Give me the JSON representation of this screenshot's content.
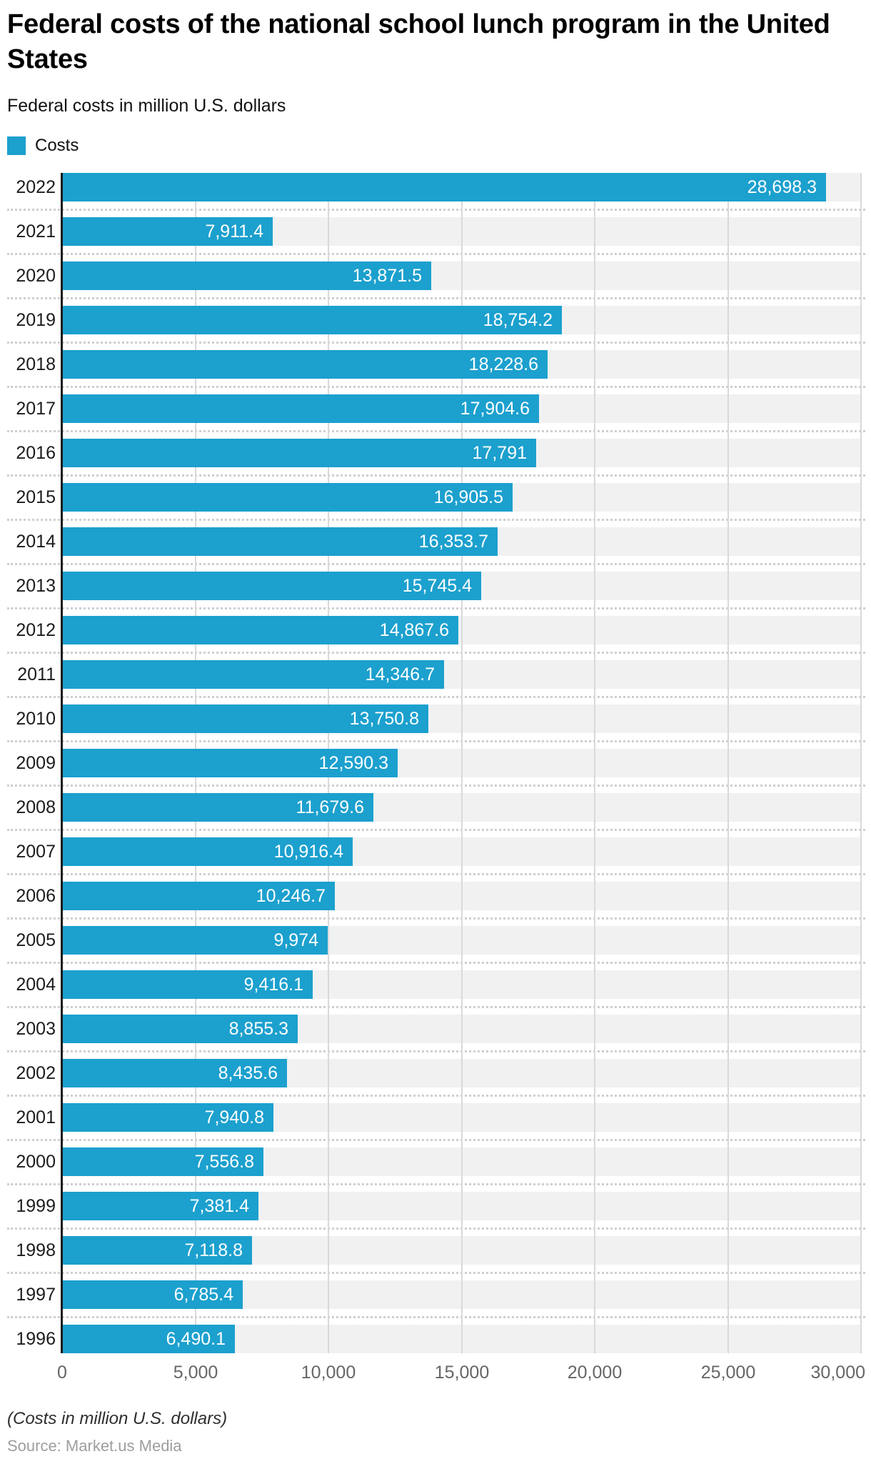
{
  "header": {
    "title": "Federal costs of the national school lunch program in the United States",
    "subtitle": "Federal costs in million U.S. dollars"
  },
  "legend": {
    "label": "Costs",
    "color": "#1CA0CE"
  },
  "chart_data": {
    "type": "bar",
    "orientation": "horizontal",
    "title": "Federal costs of the national school lunch program in the United States",
    "subtitle": "Federal costs in million U.S. dollars",
    "legend_entries": [
      "Costs"
    ],
    "bar_color": "#1CA0CE",
    "track_color": "#f1f1f1",
    "grid": true,
    "xlabel": "",
    "ylabel": "",
    "xlim": [
      0,
      30000
    ],
    "categories": [
      "2022",
      "2021",
      "2020",
      "2019",
      "2018",
      "2017",
      "2016",
      "2015",
      "2014",
      "2013",
      "2012",
      "2011",
      "2010",
      "2009",
      "2008",
      "2007",
      "2006",
      "2005",
      "2004",
      "2003",
      "2002",
      "2001",
      "2000",
      "1999",
      "1998",
      "1997",
      "1996"
    ],
    "values": [
      28698.3,
      7911.4,
      13871.5,
      18754.2,
      18228.6,
      17904.6,
      17791,
      16905.5,
      16353.7,
      15745.4,
      14867.6,
      14346.7,
      13750.8,
      12590.3,
      11679.6,
      10916.4,
      10246.7,
      9974,
      9416.1,
      8855.3,
      8435.6,
      7940.8,
      7556.8,
      7381.4,
      7118.8,
      6785.4,
      6490.1
    ],
    "value_labels": [
      "28,698.3",
      "7,911.4",
      "13,871.5",
      "18,754.2",
      "18,228.6",
      "17,904.6",
      "17,791",
      "16,905.5",
      "16,353.7",
      "15,745.4",
      "14,867.6",
      "14,346.7",
      "13,750.8",
      "12,590.3",
      "11,679.6",
      "10,916.4",
      "10,246.7",
      "9,974",
      "9,416.1",
      "8,855.3",
      "8,435.6",
      "7,940.8",
      "7,556.8",
      "7,381.4",
      "7,118.8",
      "6,785.4",
      "6,490.1"
    ],
    "x_ticks": [
      {
        "value": 0,
        "label": "0"
      },
      {
        "value": 5000,
        "label": "5,000"
      },
      {
        "value": 10000,
        "label": "10,000"
      },
      {
        "value": 15000,
        "label": "15,000"
      },
      {
        "value": 20000,
        "label": "20,000"
      },
      {
        "value": 25000,
        "label": "25,000"
      },
      {
        "value": 30000,
        "label": "30,000"
      }
    ]
  },
  "footer": {
    "note": "(Costs in million U.S. dollars)",
    "source": "Source: Market.us Media"
  }
}
